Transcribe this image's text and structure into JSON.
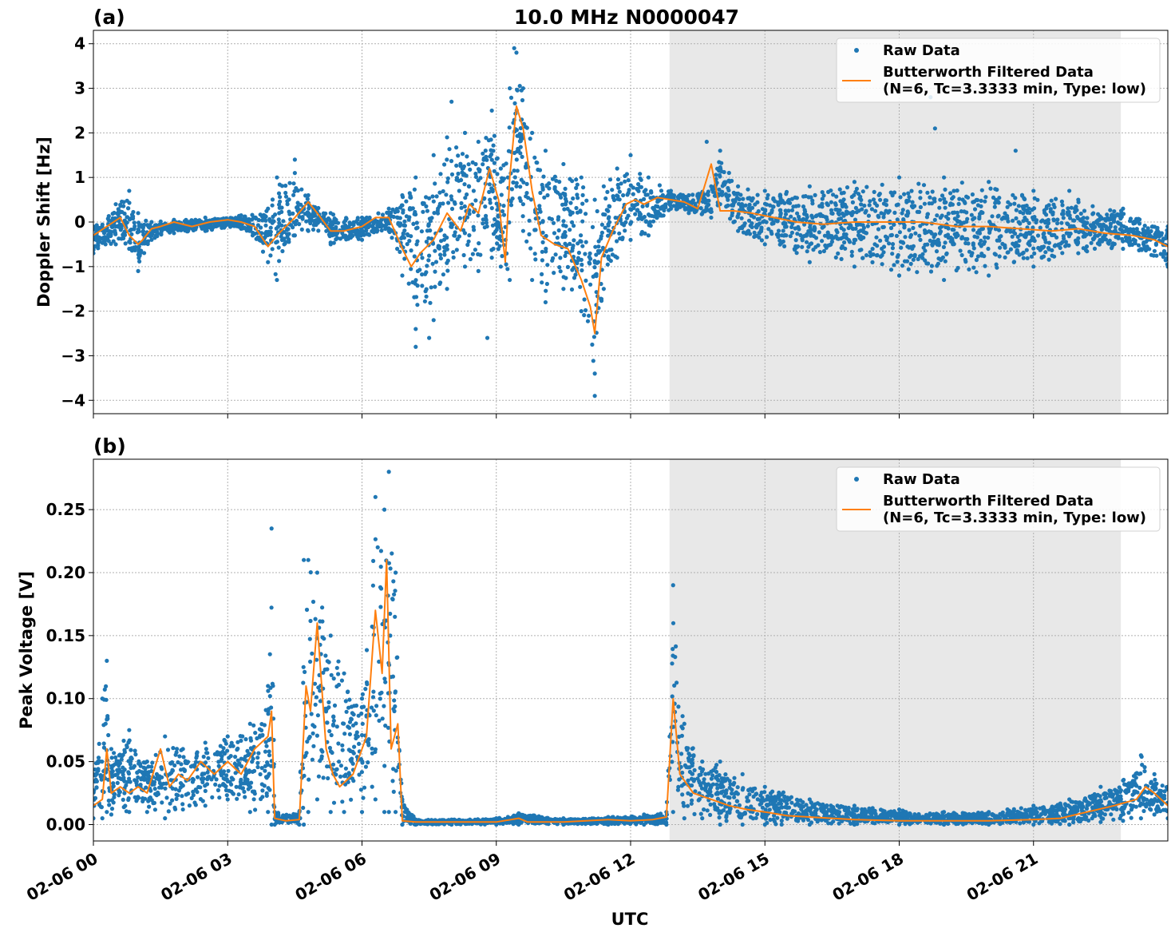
{
  "chart_data": {
    "title": "10.0 MHz N0000047",
    "xlabel": "UTC",
    "x_tick_labels": [
      "02-06 00",
      "02-06 03",
      "02-06 06",
      "02-06 09",
      "02-06 12",
      "02-06 15",
      "02-06 18",
      "02-06 21"
    ],
    "x_tick_hours": [
      0,
      3,
      6,
      9,
      12,
      15,
      18,
      21
    ],
    "x_range_hours": [
      0,
      24
    ],
    "shaded_region_hours": [
      12.87,
      22.95
    ],
    "shaded_color": "#e8e8e8",
    "grid": true,
    "colors": {
      "raw": "#1f77b4",
      "filtered": "#ff7f0e"
    },
    "legend": {
      "placement": "top-right",
      "raw_label": "Raw Data",
      "filtered_label_line1": "Butterworth Filtered Data",
      "filtered_label_line2": "(N=6, Tc=3.3333 min, Type: low)"
    },
    "panels": [
      {
        "label": "(a)",
        "type": "scatter+line",
        "ylabel": "Doppler Shift [Hz]",
        "ylim": [
          -4.3,
          4.3
        ],
        "y_ticks": [
          -4,
          -3,
          -2,
          -1,
          0,
          1,
          2,
          3,
          4
        ],
        "y_tick_labels": [
          "−4",
          "−3",
          "−2",
          "−1",
          "0",
          "1",
          "2",
          "3",
          "4"
        ],
        "filtered_series": {
          "x": [
            0,
            0.3,
            0.6,
            0.8,
            1.0,
            1.1,
            1.3,
            1.5,
            1.8,
            2.2,
            2.6,
            3.0,
            3.3,
            3.6,
            3.9,
            4.1,
            4.5,
            4.8,
            5.0,
            5.3,
            5.6,
            6.0,
            6.3,
            6.6,
            6.9,
            7.1,
            7.3,
            7.6,
            7.9,
            8.2,
            8.4,
            8.6,
            8.85,
            9.05,
            9.2,
            9.3,
            9.45,
            9.6,
            9.8,
            10.0,
            10.3,
            10.6,
            10.9,
            11.1,
            11.2,
            11.35,
            11.6,
            11.9,
            12.1,
            12.3,
            12.6,
            12.9,
            13.2,
            13.5,
            13.8,
            14.0,
            14.3,
            14.7,
            15.2,
            15.7,
            16.3,
            17.0,
            17.8,
            18.5,
            19.3,
            20.0,
            20.7,
            21.4,
            22.0,
            22.6,
            23.2,
            23.7,
            24.0
          ],
          "y": [
            -0.3,
            -0.1,
            0.1,
            -0.3,
            -0.5,
            -0.4,
            -0.15,
            -0.1,
            0.0,
            -0.1,
            0.0,
            0.05,
            0.0,
            -0.1,
            -0.55,
            -0.3,
            0.1,
            0.45,
            0.2,
            -0.2,
            -0.2,
            -0.1,
            0.1,
            0.1,
            -0.6,
            -1.0,
            -0.7,
            -0.4,
            0.2,
            -0.2,
            0.4,
            0.2,
            1.2,
            0.5,
            -0.9,
            1.0,
            2.6,
            2.1,
            0.7,
            -0.3,
            -0.5,
            -0.6,
            -1.3,
            -1.9,
            -2.5,
            -0.8,
            -0.2,
            0.4,
            0.5,
            0.4,
            0.55,
            0.5,
            0.45,
            0.3,
            1.3,
            0.25,
            0.25,
            0.2,
            0.1,
            0.0,
            -0.05,
            0.0,
            0.0,
            0.0,
            -0.1,
            -0.1,
            -0.15,
            -0.2,
            -0.15,
            -0.25,
            -0.3,
            -0.4,
            -0.55
          ]
        },
        "raw_envelope": {
          "x": [
            0,
            0.5,
            0.8,
            1.0,
            1.3,
            1.8,
            2.5,
            3.3,
            3.9,
            4.1,
            4.5,
            4.8,
            5.3,
            6.0,
            6.6,
            6.9,
            7.2,
            7.6,
            7.9,
            8.3,
            8.6,
            8.9,
            9.1,
            9.3,
            9.45,
            9.6,
            9.8,
            10.1,
            10.5,
            10.9,
            11.2,
            11.4,
            11.7,
            12.0,
            12.4,
            12.9,
            13.3,
            13.8,
            14.0,
            14.4,
            15.0,
            16.0,
            17.0,
            18.0,
            19.0,
            20.0,
            21.0,
            22.0,
            23.0,
            24.0
          ],
          "upper": [
            -0.1,
            0.4,
            0.7,
            0.2,
            0.0,
            0.05,
            0.1,
            0.15,
            0.3,
            1.0,
            1.1,
            0.6,
            0.2,
            0.1,
            0.3,
            0.6,
            1.0,
            1.5,
            1.9,
            2.0,
            1.8,
            2.5,
            1.2,
            3.0,
            3.8,
            3.0,
            2.0,
            1.6,
            1.3,
            1.0,
            0.5,
            0.8,
            1.2,
            1.5,
            1.0,
            0.7,
            0.6,
            0.8,
            1.6,
            0.8,
            0.7,
            0.8,
            0.9,
            1.0,
            1.0,
            0.9,
            0.7,
            0.5,
            0.3,
            -0.1
          ],
          "lower": [
            -0.7,
            -0.5,
            -0.6,
            -1.1,
            -0.4,
            -0.25,
            -0.2,
            -0.15,
            -0.9,
            -1.3,
            -0.3,
            -0.2,
            -0.5,
            -0.4,
            -0.2,
            -1.2,
            -2.4,
            -2.2,
            -1.5,
            -1.0,
            -1.1,
            -0.8,
            -1.0,
            -1.3,
            0.8,
            -0.2,
            -1.3,
            -1.8,
            -1.5,
            -2.0,
            -3.4,
            -1.5,
            -0.8,
            -0.4,
            -0.3,
            0.3,
            0.2,
            0.1,
            0.4,
            -0.2,
            -0.5,
            -0.9,
            -1.0,
            -1.2,
            -1.3,
            -1.2,
            -1.0,
            -0.7,
            -0.6,
            -1.0
          ]
        },
        "raw_outliers": {
          "x": [
            4.5,
            7.2,
            7.5,
            8.0,
            8.8,
            9.4,
            11.2,
            18.8,
            18.7,
            20.6,
            13.7,
            21.8
          ],
          "y": [
            1.4,
            -2.8,
            -2.6,
            2.7,
            -2.6,
            3.9,
            -3.9,
            2.1,
            2.8,
            1.6,
            1.8,
            0.7
          ]
        }
      },
      {
        "label": "(b)",
        "type": "scatter+line",
        "ylabel": "Peak Voltage [V]",
        "ylim": [
          -0.013,
          0.29
        ],
        "y_ticks": [
          0.0,
          0.05,
          0.1,
          0.15,
          0.2,
          0.25
        ],
        "y_tick_labels": [
          "0.00",
          "0.05",
          "0.10",
          "0.15",
          "0.20",
          "0.25"
        ],
        "filtered_series": {
          "x": [
            0,
            0.2,
            0.3,
            0.4,
            0.6,
            0.8,
            1.0,
            1.2,
            1.5,
            1.7,
            1.9,
            2.1,
            2.4,
            2.7,
            3.0,
            3.3,
            3.6,
            3.9,
            3.98,
            4.05,
            4.3,
            4.6,
            4.75,
            4.85,
            5.0,
            5.2,
            5.35,
            5.5,
            5.8,
            6.1,
            6.3,
            6.45,
            6.55,
            6.65,
            6.8,
            6.9,
            7.2,
            8.0,
            9.0,
            9.5,
            9.7,
            10.5,
            11.5,
            12.0,
            12.5,
            12.8,
            12.95,
            13.1,
            13.4,
            13.8,
            14.2,
            14.6,
            15.0,
            15.5,
            16.0,
            17.0,
            18.0,
            19.0,
            20.0,
            21.0,
            21.6,
            22.2,
            22.8,
            23.3,
            23.5,
            23.7,
            24.0
          ],
          "y": [
            0.015,
            0.02,
            0.06,
            0.025,
            0.03,
            0.025,
            0.03,
            0.025,
            0.06,
            0.03,
            0.04,
            0.035,
            0.05,
            0.04,
            0.05,
            0.04,
            0.06,
            0.07,
            0.09,
            0.005,
            0.003,
            0.004,
            0.11,
            0.09,
            0.16,
            0.06,
            0.04,
            0.03,
            0.04,
            0.07,
            0.17,
            0.12,
            0.21,
            0.06,
            0.08,
            0.003,
            0.002,
            0.002,
            0.002,
            0.005,
            0.002,
            0.002,
            0.004,
            0.003,
            0.004,
            0.006,
            0.1,
            0.04,
            0.025,
            0.02,
            0.015,
            0.012,
            0.01,
            0.007,
            0.006,
            0.004,
            0.003,
            0.003,
            0.003,
            0.004,
            0.005,
            0.01,
            0.015,
            0.02,
            0.03,
            0.025,
            0.015
          ]
        },
        "raw_envelope": {
          "x": [
            0,
            0.2,
            0.3,
            0.4,
            0.8,
            1.2,
            1.6,
            2.0,
            2.5,
            3.0,
            3.5,
            3.9,
            3.98,
            4.05,
            4.6,
            4.7,
            4.8,
            5.0,
            5.3,
            5.6,
            6.0,
            6.3,
            6.5,
            6.6,
            6.75,
            6.9,
            7.2,
            8.0,
            9.0,
            9.5,
            10.5,
            11.5,
            12.3,
            12.8,
            12.95,
            13.2,
            13.6,
            14.0,
            14.5,
            15.0,
            16.0,
            17.0,
            18.0,
            19.0,
            20.0,
            21.0,
            21.8,
            22.5,
            23.0,
            23.4,
            23.7,
            24.0
          ],
          "upper": [
            0.04,
            0.1,
            0.13,
            0.06,
            0.075,
            0.05,
            0.07,
            0.06,
            0.065,
            0.07,
            0.08,
            0.11,
            0.235,
            0.01,
            0.01,
            0.21,
            0.21,
            0.2,
            0.15,
            0.12,
            0.1,
            0.26,
            0.25,
            0.28,
            0.2,
            0.02,
            0.004,
            0.004,
            0.005,
            0.009,
            0.005,
            0.006,
            0.008,
            0.01,
            0.19,
            0.08,
            0.05,
            0.05,
            0.04,
            0.03,
            0.02,
            0.015,
            0.012,
            0.01,
            0.01,
            0.015,
            0.02,
            0.03,
            0.035,
            0.055,
            0.04,
            0.03
          ],
          "lower": [
            0.005,
            0.005,
            0.01,
            0.008,
            0.01,
            0.01,
            0.005,
            0.012,
            0.015,
            0.02,
            0.01,
            0.01,
            0.0,
            0.0,
            0.0,
            0.0,
            0.01,
            0.02,
            0.01,
            0.01,
            0.01,
            0.02,
            0.01,
            0.01,
            0.01,
            0.0,
            0.0,
            0.0,
            0.0,
            0.0,
            0.0,
            0.0,
            0.0,
            0.0,
            0.01,
            0.005,
            0.005,
            0.0,
            0.0,
            0.0,
            0.0,
            0.0,
            0.0,
            0.0,
            0.0,
            0.0,
            0.0,
            0.002,
            0.003,
            0.005,
            0.008,
            0.005
          ]
        }
      }
    ]
  }
}
